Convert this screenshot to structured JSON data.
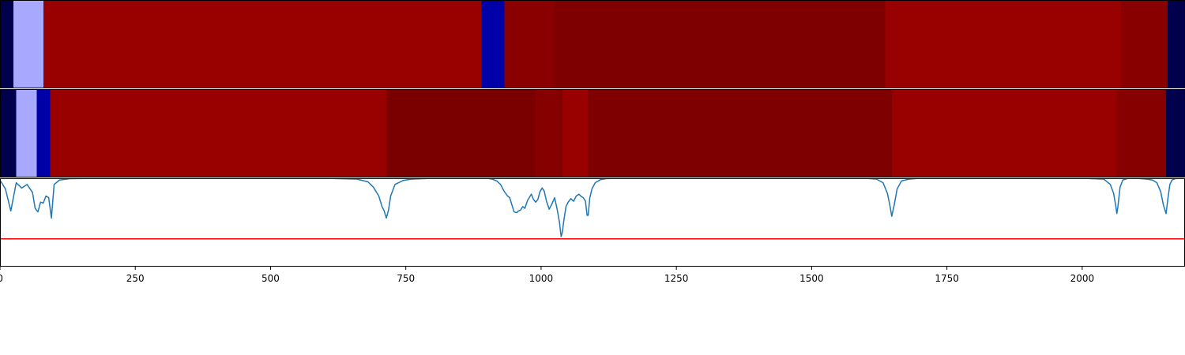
{
  "chart_data": [
    {
      "type": "heatmap",
      "panel": "segmentation-track-1",
      "colormap": "seismic",
      "xlim": [
        0,
        2190
      ],
      "segments": [
        {
          "start": 0,
          "end": 25,
          "color": "#00004c"
        },
        {
          "start": 25,
          "end": 80,
          "color": "#a8a8ff"
        },
        {
          "start": 80,
          "end": 890,
          "color": "#990000"
        },
        {
          "start": 890,
          "end": 932,
          "color": "#0000a8"
        },
        {
          "start": 932,
          "end": 1025,
          "color": "#8a0000"
        },
        {
          "start": 1025,
          "end": 1636,
          "color": "#7f0000"
        },
        {
          "start": 1636,
          "end": 2072,
          "color": "#990000"
        },
        {
          "start": 2072,
          "end": 2158,
          "color": "#890000"
        },
        {
          "start": 2158,
          "end": 2190,
          "color": "#00004c"
        }
      ]
    },
    {
      "type": "heatmap",
      "panel": "segmentation-track-2",
      "colormap": "seismic",
      "xlim": [
        0,
        2190
      ],
      "segments": [
        {
          "start": 0,
          "end": 30,
          "color": "#00004c"
        },
        {
          "start": 30,
          "end": 68,
          "color": "#a8a8ff"
        },
        {
          "start": 68,
          "end": 93,
          "color": "#0000a8"
        },
        {
          "start": 93,
          "end": 714,
          "color": "#990000"
        },
        {
          "start": 714,
          "end": 990,
          "color": "#7a0000"
        },
        {
          "start": 990,
          "end": 1037,
          "color": "#870000"
        },
        {
          "start": 1037,
          "end": 1039,
          "color": "#6a0000"
        },
        {
          "start": 1039,
          "end": 1087,
          "color": "#990000"
        },
        {
          "start": 1087,
          "end": 1648,
          "color": "#7f0000"
        },
        {
          "start": 1648,
          "end": 2064,
          "color": "#990000"
        },
        {
          "start": 2064,
          "end": 2155,
          "color": "#870000"
        },
        {
          "start": 2155,
          "end": 2190,
          "color": "#00004c"
        }
      ]
    },
    {
      "type": "line",
      "panel": "score-plot",
      "xlim": [
        0,
        2190
      ],
      "ylim": [
        0,
        1
      ],
      "xticks": [
        0,
        250,
        500,
        750,
        1000,
        1250,
        1500,
        1750,
        2000
      ],
      "grid": false,
      "series": [
        {
          "color": "#1f77b4",
          "x": [
            0,
            10,
            20,
            30,
            40,
            50,
            60,
            65,
            70,
            75,
            80,
            85,
            90,
            95,
            100,
            110,
            130,
            200,
            300,
            400,
            500,
            600,
            660,
            680,
            690,
            700,
            706,
            710,
            714,
            718,
            722,
            730,
            745,
            760,
            800,
            850,
            900,
            910,
            918,
            925,
            932,
            938,
            942,
            946,
            950,
            955,
            958,
            962,
            966,
            970,
            975,
            978,
            982,
            986,
            990,
            994,
            998,
            1002,
            1006,
            1010,
            1015,
            1020,
            1025,
            1030,
            1034,
            1037,
            1039,
            1042,
            1046,
            1050,
            1055,
            1060,
            1065,
            1070,
            1075,
            1078,
            1082,
            1085,
            1087,
            1090,
            1094,
            1100,
            1110,
            1120,
            1140,
            1200,
            1400,
            1500,
            1600,
            1620,
            1632,
            1640,
            1645,
            1648,
            1652,
            1658,
            1666,
            1680,
            1700,
            2000,
            2040,
            2052,
            2058,
            2062,
            2064,
            2066,
            2070,
            2075,
            2085,
            2100,
            2120,
            2130,
            2138,
            2145,
            2150,
            2155,
            2158,
            2162,
            2166,
            2172,
            2180,
            2190
          ],
          "y": [
            0.98,
            0.88,
            0.63,
            0.95,
            0.89,
            0.93,
            0.84,
            0.66,
            0.62,
            0.73,
            0.72,
            0.8,
            0.78,
            0.55,
            0.93,
            0.98,
            0.995,
            1.0,
            1.0,
            1.0,
            1.0,
            1.0,
            0.99,
            0.96,
            0.9,
            0.8,
            0.68,
            0.63,
            0.55,
            0.64,
            0.8,
            0.93,
            0.975,
            0.99,
            1.0,
            1.0,
            1.0,
            0.99,
            0.97,
            0.93,
            0.85,
            0.8,
            0.78,
            0.7,
            0.62,
            0.61,
            0.63,
            0.64,
            0.68,
            0.66,
            0.75,
            0.78,
            0.82,
            0.76,
            0.73,
            0.76,
            0.85,
            0.89,
            0.85,
            0.74,
            0.65,
            0.71,
            0.78,
            0.64,
            0.5,
            0.34,
            0.38,
            0.52,
            0.68,
            0.73,
            0.77,
            0.74,
            0.8,
            0.82,
            0.79,
            0.78,
            0.74,
            0.58,
            0.58,
            0.78,
            0.88,
            0.95,
            0.985,
            0.995,
            1.0,
            1.0,
            1.0,
            1.0,
            1.0,
            0.99,
            0.95,
            0.83,
            0.68,
            0.57,
            0.68,
            0.88,
            0.97,
            0.99,
            1.0,
            1.0,
            0.99,
            0.93,
            0.83,
            0.69,
            0.6,
            0.68,
            0.9,
            0.98,
            1.0,
            1.0,
            0.99,
            0.98,
            0.95,
            0.85,
            0.7,
            0.6,
            0.75,
            0.93,
            0.98,
            0.995,
            1.0,
            1.0
          ]
        }
      ],
      "threshold": {
        "y": 0.315,
        "color": "#ff0000"
      }
    }
  ]
}
